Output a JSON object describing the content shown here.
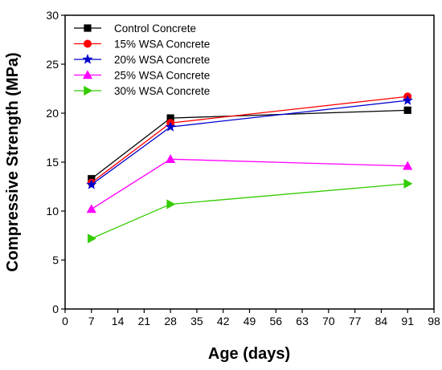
{
  "chart_data": {
    "type": "line",
    "xlabel": "Age (days)",
    "ylabel": "Compressive Strength (MPa)",
    "xlim": [
      0,
      98
    ],
    "ylim": [
      0,
      30
    ],
    "xticks": [
      0,
      7,
      14,
      21,
      28,
      35,
      42,
      49,
      56,
      63,
      70,
      77,
      84,
      91,
      98
    ],
    "yticks": [
      0,
      5,
      10,
      15,
      20,
      25,
      30
    ],
    "x": [
      7,
      28,
      91
    ],
    "grid": false,
    "legend_position": "top-left",
    "series": [
      {
        "name": "Control Concrete",
        "values": [
          13.3,
          19.5,
          20.3
        ],
        "color": "#000000",
        "marker": "square"
      },
      {
        "name": "15% WSA Concrete",
        "values": [
          12.9,
          19.0,
          21.7
        ],
        "color": "#ff0000",
        "marker": "circle"
      },
      {
        "name": "20% WSA Concrete",
        "values": [
          12.7,
          18.6,
          21.3
        ],
        "color": "#0000cc",
        "marker": "star"
      },
      {
        "name": "25% WSA Concrete",
        "values": [
          10.2,
          15.3,
          14.6
        ],
        "color": "#ff00ff",
        "marker": "triangle-up"
      },
      {
        "name": "30% WSA Concrete",
        "values": [
          7.2,
          10.7,
          12.8
        ],
        "color": "#33cc00",
        "marker": "triangle-right"
      }
    ]
  }
}
